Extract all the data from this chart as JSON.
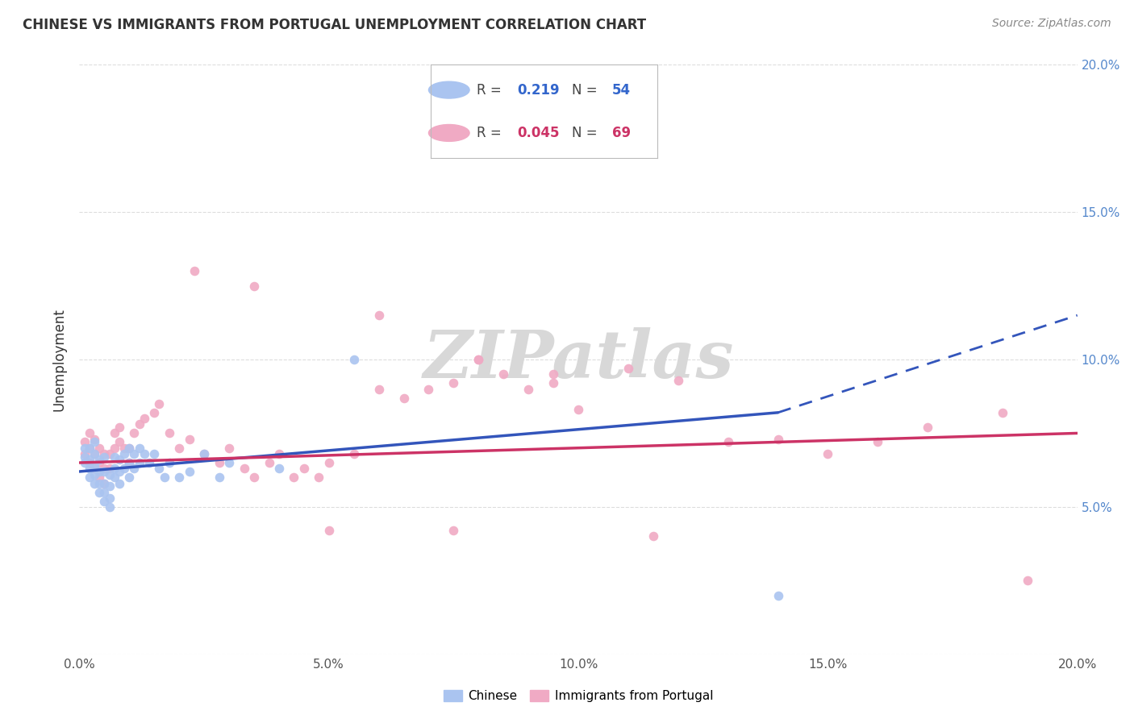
{
  "title": "CHINESE VS IMMIGRANTS FROM PORTUGAL UNEMPLOYMENT CORRELATION CHART",
  "source": "Source: ZipAtlas.com",
  "ylabel": "Unemployment",
  "xlim": [
    0.0,
    0.2
  ],
  "ylim": [
    0.0,
    0.2
  ],
  "legend_blue_R": "0.219",
  "legend_blue_N": "54",
  "legend_pink_R": "0.045",
  "legend_pink_N": "69",
  "chinese_color": "#aac4f0",
  "portugal_color": "#f0aac4",
  "trendline_blue_color": "#3355bb",
  "trendline_pink_color": "#cc3366",
  "watermark": "ZIPatlas",
  "watermark_color": "#d8d8d8",
  "chinese_x": [
    0.001,
    0.001,
    0.001,
    0.002,
    0.002,
    0.002,
    0.002,
    0.003,
    0.003,
    0.003,
    0.003,
    0.003,
    0.004,
    0.004,
    0.004,
    0.004,
    0.005,
    0.005,
    0.005,
    0.005,
    0.005,
    0.006,
    0.006,
    0.006,
    0.006,
    0.007,
    0.007,
    0.007,
    0.008,
    0.008,
    0.008,
    0.009,
    0.009,
    0.01,
    0.01,
    0.01,
    0.011,
    0.011,
    0.012,
    0.012,
    0.013,
    0.014,
    0.015,
    0.016,
    0.017,
    0.018,
    0.02,
    0.022,
    0.025,
    0.028,
    0.03,
    0.04,
    0.055,
    0.14
  ],
  "chinese_y": [
    0.065,
    0.067,
    0.07,
    0.06,
    0.063,
    0.066,
    0.07,
    0.058,
    0.061,
    0.064,
    0.068,
    0.072,
    0.055,
    0.058,
    0.062,
    0.066,
    0.052,
    0.055,
    0.058,
    0.062,
    0.067,
    0.05,
    0.053,
    0.057,
    0.061,
    0.06,
    0.063,
    0.067,
    0.058,
    0.062,
    0.066,
    0.063,
    0.068,
    0.06,
    0.065,
    0.07,
    0.063,
    0.068,
    0.065,
    0.07,
    0.068,
    0.065,
    0.068,
    0.063,
    0.06,
    0.065,
    0.06,
    0.062,
    0.068,
    0.06,
    0.065,
    0.063,
    0.1,
    0.02
  ],
  "portugal_x": [
    0.001,
    0.001,
    0.002,
    0.002,
    0.002,
    0.003,
    0.003,
    0.003,
    0.004,
    0.004,
    0.004,
    0.005,
    0.005,
    0.005,
    0.006,
    0.006,
    0.007,
    0.007,
    0.008,
    0.008,
    0.009,
    0.01,
    0.01,
    0.011,
    0.012,
    0.013,
    0.015,
    0.016,
    0.018,
    0.02,
    0.022,
    0.025,
    0.028,
    0.03,
    0.033,
    0.035,
    0.038,
    0.04,
    0.043,
    0.045,
    0.048,
    0.05,
    0.055,
    0.06,
    0.065,
    0.07,
    0.075,
    0.08,
    0.085,
    0.09,
    0.095,
    0.1,
    0.11,
    0.12,
    0.13,
    0.14,
    0.15,
    0.16,
    0.17,
    0.185,
    0.023,
    0.035,
    0.06,
    0.08,
    0.095,
    0.115,
    0.05,
    0.075,
    0.19
  ],
  "portugal_y": [
    0.068,
    0.072,
    0.065,
    0.07,
    0.075,
    0.063,
    0.068,
    0.073,
    0.06,
    0.065,
    0.07,
    0.058,
    0.063,
    0.068,
    0.063,
    0.068,
    0.07,
    0.075,
    0.072,
    0.077,
    0.07,
    0.065,
    0.07,
    0.075,
    0.078,
    0.08,
    0.082,
    0.085,
    0.075,
    0.07,
    0.073,
    0.068,
    0.065,
    0.07,
    0.063,
    0.06,
    0.065,
    0.068,
    0.06,
    0.063,
    0.06,
    0.065,
    0.068,
    0.09,
    0.087,
    0.09,
    0.092,
    0.1,
    0.095,
    0.09,
    0.092,
    0.083,
    0.097,
    0.093,
    0.072,
    0.073,
    0.068,
    0.072,
    0.077,
    0.082,
    0.13,
    0.125,
    0.115,
    0.1,
    0.095,
    0.04,
    0.042,
    0.042,
    0.025
  ],
  "trendline_blue_x0": 0.0,
  "trendline_blue_y0": 0.062,
  "trendline_blue_x1": 0.14,
  "trendline_blue_y1": 0.082,
  "trendline_blue_dash_x1": 0.2,
  "trendline_blue_dash_y1": 0.115,
  "trendline_pink_x0": 0.0,
  "trendline_pink_y0": 0.065,
  "trendline_pink_x1": 0.2,
  "trendline_pink_y1": 0.075
}
